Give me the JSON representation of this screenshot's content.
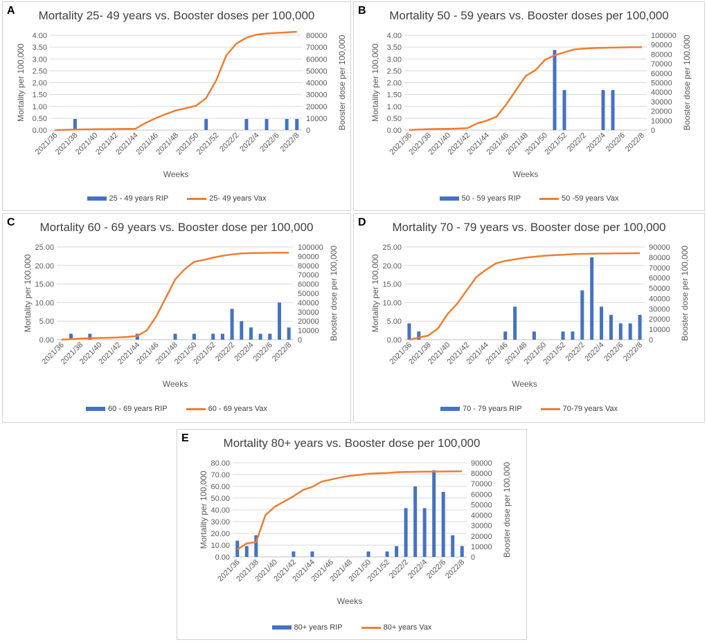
{
  "colors": {
    "rip": "#4472c4",
    "vax": "#ed7d31",
    "grid": "#d9d9d9",
    "axis_text": "#595959"
  },
  "chart_data": [
    {
      "type": "bar+line",
      "panel": "A",
      "title": "Mortality 25- 49 years vs. Booster doses per 100,000",
      "xlabel": "Weeks",
      "ylabel": "Mortality per 100,000",
      "y2label": "Booster dose per 100,000",
      "categories": [
        "2021/36",
        "2021/37",
        "2021/38",
        "2021/39",
        "2021/40",
        "2021/41",
        "2021/42",
        "2021/43",
        "2021/44",
        "2021/45",
        "2021/46",
        "2021/47",
        "2021/48",
        "2021/49",
        "2021/50",
        "2021/51",
        "2021/52",
        "2022/1",
        "2022/2",
        "2022/3",
        "2022/4",
        "2022/5",
        "2022/6",
        "2022/7",
        "2022/8"
      ],
      "xtick_labels": [
        "2021/36",
        "2021/38",
        "2021/40",
        "2021/42",
        "2021/44",
        "2021/46",
        "2021/48",
        "2021/50",
        "2021/52",
        "2022/2",
        "2022/4",
        "2022/6",
        "2022/8"
      ],
      "ylim": [
        0,
        4
      ],
      "yticks": [
        "0.00",
        "0.50",
        "1.00",
        "1.50",
        "2.00",
        "2.50",
        "3.00",
        "3.50",
        "4.00"
      ],
      "y2lim": [
        0,
        80000
      ],
      "y2ticks": [
        "0",
        "10000",
        "20000",
        "30000",
        "40000",
        "50000",
        "60000",
        "70000",
        "80000"
      ],
      "series": [
        {
          "name": "25 - 49 years RIP",
          "kind": "bar",
          "values": [
            0,
            0,
            0.47,
            0,
            0,
            0,
            0,
            0,
            0,
            0,
            0,
            0,
            0,
            0,
            0,
            0.47,
            0,
            0,
            0,
            0.47,
            0,
            0.47,
            0,
            0.47,
            0.47
          ]
        },
        {
          "name": "25- 49 years Vax",
          "kind": "line",
          "axis": "y2",
          "values": [
            0,
            200,
            400,
            600,
            700,
            800,
            900,
            1000,
            1100,
            6000,
            10000,
            13500,
            16500,
            18500,
            20500,
            27000,
            42000,
            63000,
            73000,
            78000,
            80500,
            81500,
            82000,
            82500,
            83000
          ]
        }
      ]
    },
    {
      "type": "bar+line",
      "panel": "B",
      "title": "Mortality 50 - 59 years vs. Booster doses per 100,000",
      "xlabel": "Weeks",
      "ylabel": "Mortality per 100,000",
      "y2label": "Booster dose per 100,000",
      "categories": [
        "2021/36",
        "2021/37",
        "2021/38",
        "2021/39",
        "2021/40",
        "2021/41",
        "2021/42",
        "2021/43",
        "2021/44",
        "2021/45",
        "2021/46",
        "2021/47",
        "2021/48",
        "2021/49",
        "2021/50",
        "2021/51",
        "2021/52",
        "2022/1",
        "2022/2",
        "2022/3",
        "2022/4",
        "2022/5",
        "2022/6",
        "2022/7",
        "2022/8"
      ],
      "xtick_labels": [
        "2021/36",
        "2021/38",
        "2021/40",
        "2021/42",
        "2021/44",
        "2021/46",
        "2021/48",
        "2021/50",
        "2021/52",
        "2022/2",
        "2022/4",
        "2022/6",
        "2022/8"
      ],
      "ylim": [
        0,
        4
      ],
      "yticks": [
        "0.00",
        "0.50",
        "1.00",
        "1.50",
        "2.00",
        "2.50",
        "3.00",
        "3.50",
        "4.00"
      ],
      "y2lim": [
        0,
        100000
      ],
      "y2ticks": [
        "0",
        "10000",
        "20000",
        "30000",
        "40000",
        "50000",
        "60000",
        "70000",
        "80000",
        "90000",
        "100000"
      ],
      "series": [
        {
          "name": "50 - 59 years RIP",
          "kind": "bar",
          "values": [
            0,
            0,
            0,
            0,
            0,
            0,
            0,
            0,
            0,
            0,
            0,
            0,
            0,
            0,
            0,
            3.38,
            1.69,
            0,
            0,
            0,
            1.69,
            1.69,
            0,
            0,
            0
          ]
        },
        {
          "name": "50 -59 years Vax",
          "kind": "line",
          "axis": "y2",
          "values": [
            0,
            500,
            1000,
            1200,
            1300,
            1500,
            2000,
            7000,
            10000,
            14000,
            27000,
            42000,
            57000,
            63000,
            74000,
            79000,
            82000,
            85000,
            86000,
            86500,
            86800,
            87000,
            87200,
            87400,
            87500
          ]
        }
      ]
    },
    {
      "type": "bar+line",
      "panel": "C",
      "title": "Mortality 60 - 69 years vs. Booster dose per 100,000",
      "xlabel": "Weeks",
      "ylabel": "Mortality per 100,000",
      "y2label": "Booster dose per 100,000",
      "categories": [
        "2021/36",
        "2021/37",
        "2021/38",
        "2021/39",
        "2021/40",
        "2021/41",
        "2021/42",
        "2021/43",
        "2021/44",
        "2021/45",
        "2021/46",
        "2021/47",
        "2021/48",
        "2021/49",
        "2021/50",
        "2021/51",
        "2021/52",
        "2022/1",
        "2022/2",
        "2022/3",
        "2022/4",
        "2022/5",
        "2022/6",
        "2022/7",
        "2022/8"
      ],
      "xtick_labels": [
        "2021/36",
        "2021/38",
        "2021/40",
        "2021/42",
        "2021/44",
        "2021/46",
        "2021/48",
        "2021/50",
        "2021/52",
        "2022/2",
        "2022/4",
        "2022/6",
        "2022/8"
      ],
      "ylim": [
        0,
        25
      ],
      "yticks": [
        "0.00",
        "5.00",
        "10.00",
        "15.00",
        "20.00",
        "25.00"
      ],
      "y2lim": [
        0,
        100000
      ],
      "y2ticks": [
        "0",
        "10000",
        "20000",
        "30000",
        "40000",
        "50000",
        "60000",
        "70000",
        "80000",
        "90000",
        "100000"
      ],
      "series": [
        {
          "name": "60 - 69 years RIP",
          "kind": "bar",
          "values": [
            0,
            1.6,
            0,
            1.6,
            0,
            0,
            0,
            0,
            1.6,
            0,
            0,
            0,
            1.6,
            0,
            1.6,
            0,
            1.6,
            1.6,
            8.3,
            5.0,
            3.3,
            1.6,
            1.6,
            10.0,
            3.3
          ]
        },
        {
          "name": "60 - 69 years Vax",
          "kind": "line",
          "axis": "y2",
          "values": [
            0,
            600,
            1200,
            1600,
            1900,
            2100,
            2400,
            3000,
            4000,
            10000,
            25000,
            45000,
            65000,
            76000,
            84000,
            86000,
            88500,
            90500,
            92000,
            93000,
            93500,
            93600,
            93700,
            93800,
            93900
          ]
        }
      ]
    },
    {
      "type": "bar+line",
      "panel": "D",
      "title": "Mortality 70 - 79 years vs. Booster dose per 100,000",
      "xlabel": "Weeks",
      "ylabel": "Mortality per 100,000",
      "y2label": "Booster dose per 100,000",
      "categories": [
        "2021/36",
        "2021/37",
        "2021/38",
        "2021/39",
        "2021/40",
        "2021/41",
        "2021/42",
        "2021/43",
        "2021/44",
        "2021/45",
        "2021/46",
        "2021/47",
        "2021/48",
        "2021/49",
        "2021/50",
        "2021/51",
        "2021/52",
        "2022/1",
        "2022/2",
        "2022/3",
        "2022/4",
        "2022/5",
        "2022/6",
        "2022/7",
        "2022/8"
      ],
      "xtick_labels": [
        "2021/36",
        "2021/38",
        "2021/40",
        "2021/42",
        "2021/44",
        "2021/46",
        "2021/48",
        "2021/50",
        "2021/52",
        "2022/2",
        "2022/4",
        "2022/6",
        "2022/8"
      ],
      "ylim": [
        0,
        25
      ],
      "yticks": [
        "0.00",
        "5.00",
        "10.00",
        "15.00",
        "20.00",
        "25.00"
      ],
      "y2lim": [
        0,
        90000
      ],
      "y2ticks": [
        "0",
        "10000",
        "20000",
        "30000",
        "40000",
        "50000",
        "60000",
        "70000",
        "80000",
        "90000"
      ],
      "series": [
        {
          "name": "70 - 79 years RIP",
          "kind": "bar",
          "values": [
            4.4,
            2.2,
            0,
            0,
            0,
            0,
            0,
            0,
            0,
            0,
            2.2,
            8.9,
            0,
            2.2,
            0,
            0,
            2.2,
            2.2,
            13.3,
            22.2,
            8.9,
            6.7,
            4.4,
            4.4,
            6.7
          ]
        },
        {
          "name": "70-79 years Vax",
          "kind": "line",
          "axis": "y2",
          "values": [
            0,
            2000,
            4000,
            11000,
            25000,
            35000,
            48000,
            61000,
            68000,
            74000,
            76500,
            78000,
            79500,
            80500,
            81500,
            82000,
            82500,
            83000,
            83300,
            83500,
            83600,
            83700,
            83800,
            83900,
            84000
          ]
        }
      ]
    },
    {
      "type": "bar+line",
      "panel": "E",
      "title": "Mortality 80+ years vs. Booster dose per 100,000",
      "xlabel": "Weeks",
      "ylabel": "Mortality per 100,000",
      "y2label": "Booster dose per 100,000",
      "categories": [
        "2021/36",
        "2021/37",
        "2021/38",
        "2021/39",
        "2021/40",
        "2021/41",
        "2021/42",
        "2021/43",
        "2021/44",
        "2021/45",
        "2021/46",
        "2021/47",
        "2021/48",
        "2021/49",
        "2021/50",
        "2021/51",
        "2021/52",
        "2022/1",
        "2022/2",
        "2022/3",
        "2022/4",
        "2022/5",
        "2022/6",
        "2022/7",
        "2022/8"
      ],
      "xtick_labels": [
        "2021/36",
        "2021/38",
        "2021/40",
        "2021/42",
        "2021/44",
        "2021/46",
        "2021/48",
        "2021/50",
        "2021/52",
        "2022/2",
        "2022/4",
        "2022/6",
        "2022/8"
      ],
      "ylim": [
        0,
        80
      ],
      "yticks": [
        "0.00",
        "10.00",
        "20.00",
        "30.00",
        "40.00",
        "50.00",
        "60.00",
        "70.00",
        "80.00"
      ],
      "y2lim": [
        0,
        90000
      ],
      "y2ticks": [
        "0",
        "10000",
        "20000",
        "30000",
        "40000",
        "50000",
        "60000",
        "70000",
        "80000",
        "90000"
      ],
      "series": [
        {
          "name": "80+ years RIP",
          "kind": "bar",
          "values": [
            13.8,
            9.2,
            18.4,
            0,
            0,
            0,
            4.6,
            0,
            4.6,
            0,
            0,
            0,
            0,
            0,
            4.6,
            0,
            4.6,
            9.2,
            41.5,
            59.9,
            41.5,
            73.7,
            55.3,
            18.4,
            9.2
          ]
        },
        {
          "name": "80+ years Vax",
          "kind": "line",
          "axis": "y2",
          "values": [
            7000,
            13000,
            14000,
            40000,
            48000,
            53000,
            58000,
            64000,
            67000,
            72000,
            74000,
            76000,
            77500,
            78500,
            79500,
            80000,
            80300,
            81000,
            81200,
            81400,
            81500,
            81600,
            81700,
            81800,
            81900
          ]
        }
      ]
    }
  ]
}
